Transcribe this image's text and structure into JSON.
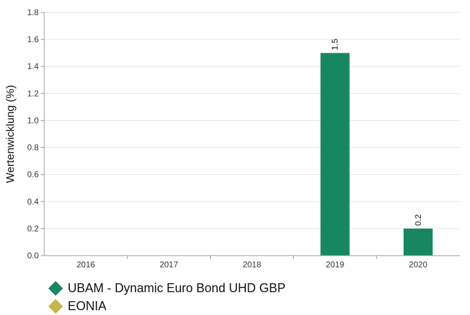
{
  "chart_data": {
    "type": "bar",
    "categories": [
      "2016",
      "2017",
      "2018",
      "2019",
      "2020"
    ],
    "series": [
      {
        "name": "UBAM - Dynamic Euro Bond UHD GBP",
        "color": "#178761",
        "values": [
          null,
          null,
          null,
          1.5,
          0.2
        ],
        "labels": [
          "",
          "",
          "",
          "1.5",
          "0.2"
        ]
      },
      {
        "name": "EONIA",
        "color": "#c8b44a",
        "values": [
          null,
          null,
          null,
          null,
          null
        ],
        "labels": [
          "",
          "",
          "",
          "",
          ""
        ]
      }
    ],
    "ylabel": "Wertenwicklung (%)",
    "xlabel": "",
    "ylim": [
      0,
      1.8
    ],
    "yticks": [
      "0.0",
      "0.2",
      "0.4",
      "0.6",
      "0.8",
      "1.0",
      "1.2",
      "1.4",
      "1.6",
      "1.8"
    ],
    "grid": true,
    "legend": "bottom-left"
  }
}
